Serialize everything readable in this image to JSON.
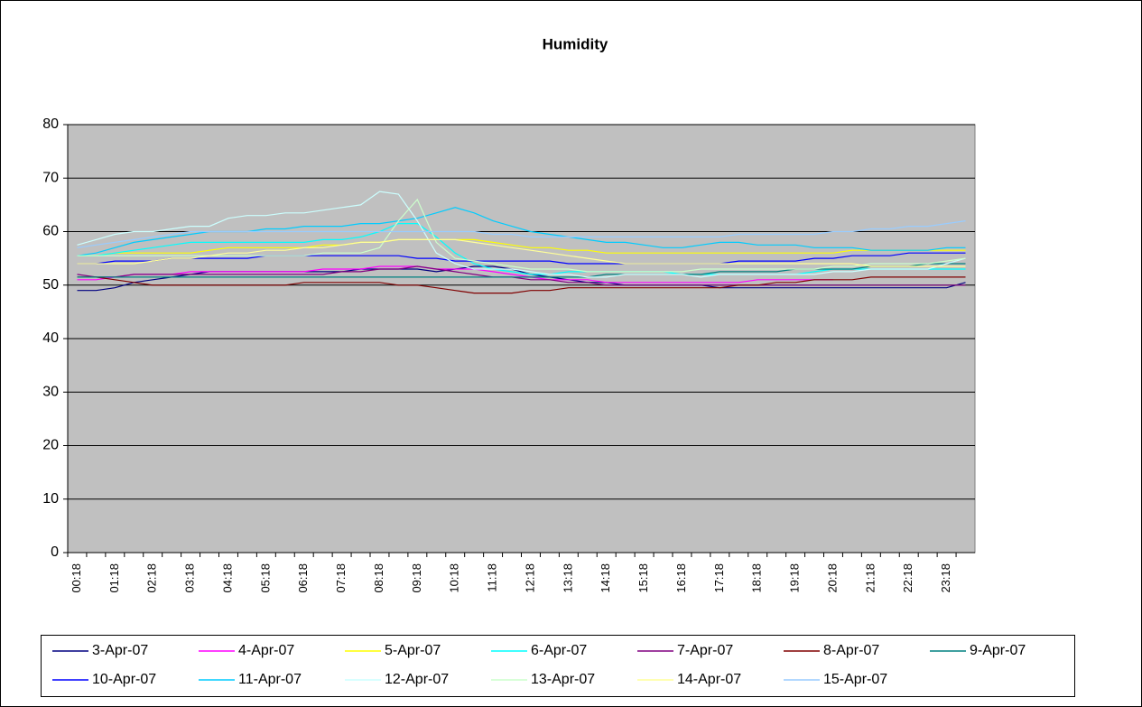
{
  "chart_data": {
    "type": "line",
    "title": "Humidity",
    "categories": [
      "00:18",
      null,
      "01:18",
      null,
      "02:18",
      null,
      "03:18",
      null,
      "04:18",
      null,
      "05:18",
      null,
      "06:18",
      null,
      "07:18",
      null,
      "08:18",
      null,
      "09:18",
      null,
      "10:18",
      null,
      "11:18",
      null,
      "12:18",
      null,
      "13:18",
      null,
      "14:18",
      null,
      "15:18",
      null,
      "16:18",
      null,
      "17:18",
      null,
      "18:18",
      null,
      "19:18",
      null,
      "20:18",
      null,
      "21:18",
      null,
      "22:18",
      null,
      "23:18",
      null
    ],
    "ylim": [
      0,
      80
    ],
    "yticks": [
      0,
      10,
      20,
      30,
      40,
      50,
      60,
      70,
      80
    ],
    "grid": true,
    "legend": "bottom",
    "series": [
      {
        "name": "3-Apr-07",
        "color": "#000080",
        "values": [
          49,
          49,
          49.5,
          50.5,
          51,
          51.5,
          52,
          52.5,
          52.5,
          52.5,
          52.5,
          52.5,
          52.5,
          52.5,
          52.5,
          53,
          53,
          53,
          53,
          52.5,
          53,
          53.5,
          53.5,
          53,
          52,
          51.5,
          51,
          50.5,
          50.5,
          50,
          50,
          50,
          50,
          50,
          49.5,
          49.5,
          49.5,
          49.5,
          49.5,
          49.5,
          49.5,
          49.5,
          49.5,
          49.5,
          49.5,
          49.5,
          49.5,
          50.5
        ]
      },
      {
        "name": "4-Apr-07",
        "color": "#FF00FF",
        "values": [
          51,
          51,
          51.5,
          52,
          52,
          52,
          52.5,
          52.5,
          52.5,
          52.5,
          52.5,
          52.5,
          52.5,
          53,
          53,
          53,
          53.5,
          53.5,
          53.5,
          53,
          53,
          53,
          52.5,
          52,
          51.5,
          51,
          51,
          51,
          50.5,
          50.5,
          50.5,
          50.5,
          50.5,
          50.5,
          50.5,
          50.5,
          51,
          51,
          51,
          51,
          51,
          null,
          null,
          null,
          null,
          null,
          null,
          null
        ]
      },
      {
        "name": "5-Apr-07",
        "color": "#FFFF00",
        "values": [
          55.5,
          55.5,
          56,
          56,
          56,
          56,
          56,
          56.5,
          57,
          57,
          57,
          57,
          57,
          57.5,
          57.5,
          58,
          58,
          58.5,
          58.5,
          58.5,
          58.5,
          58.5,
          58,
          57.5,
          57,
          57,
          56.5,
          56.5,
          56,
          56,
          56,
          56,
          56,
          56,
          56,
          56,
          56,
          56,
          56,
          56,
          56,
          56.5,
          56.5,
          56.5,
          56.5,
          56.5,
          56.5,
          56.5
        ]
      },
      {
        "name": "6-Apr-07",
        "color": "#00FFFF",
        "values": [
          55.5,
          55.5,
          56,
          56.5,
          57,
          57.5,
          58,
          58,
          58,
          58,
          58,
          58,
          58,
          58.5,
          58.5,
          59,
          60,
          61.5,
          61.5,
          59,
          56,
          54,
          53,
          52.5,
          52,
          52,
          52.5,
          52.5,
          52.5,
          52.5,
          52.5,
          52.5,
          52,
          52,
          52,
          52,
          52,
          52,
          52,
          52.5,
          53,
          53,
          53,
          53,
          53,
          53,
          53,
          53
        ]
      },
      {
        "name": "7-Apr-07",
        "color": "#800080",
        "values": [
          52,
          51.5,
          51.5,
          52,
          52,
          52,
          52,
          52,
          52,
          52,
          52,
          52,
          52,
          52,
          52.5,
          52.5,
          53,
          53,
          53.5,
          53,
          52.5,
          52,
          51.5,
          51.5,
          51,
          51,
          50.5,
          50.5,
          50,
          50,
          50,
          50,
          50,
          50,
          50,
          50,
          50,
          50,
          50,
          50,
          50,
          50,
          50,
          50,
          50,
          50,
          50,
          50
        ]
      },
      {
        "name": "8-Apr-07",
        "color": "#800000",
        "values": [
          51.5,
          51.5,
          51,
          50.5,
          50,
          50,
          50,
          50,
          50,
          50,
          50,
          50,
          50.5,
          50.5,
          50.5,
          50.5,
          50.5,
          50,
          50,
          49.5,
          49,
          48.5,
          48.5,
          48.5,
          49,
          49,
          49.5,
          49.5,
          49.5,
          49.5,
          49.5,
          49.5,
          49.5,
          49.5,
          49.5,
          50,
          50,
          50.5,
          50.5,
          51,
          51,
          51,
          51.5,
          51.5,
          51.5,
          51.5,
          51.5,
          51.5
        ]
      },
      {
        "name": "9-Apr-07",
        "color": "#008080",
        "values": [
          51.5,
          51.5,
          51.5,
          51.5,
          51.5,
          51.5,
          51.5,
          51.5,
          51.5,
          51.5,
          51.5,
          51.5,
          51.5,
          51.5,
          51.5,
          51.5,
          51.5,
          51.5,
          51.5,
          51.5,
          51.5,
          51.5,
          51.5,
          51.5,
          51.5,
          51.5,
          51.5,
          51.5,
          52,
          52,
          52,
          52,
          52,
          52,
          52.5,
          52.5,
          52.5,
          52.5,
          53,
          53,
          53,
          53,
          53.5,
          53.5,
          53.5,
          54,
          54,
          54
        ]
      },
      {
        "name": "10-Apr-07",
        "color": "#0000FF",
        "values": [
          54,
          54,
          54.5,
          54.5,
          54.5,
          55,
          55,
          55,
          55,
          55,
          55.5,
          55.5,
          55.5,
          55.5,
          55.5,
          55.5,
          55.5,
          55.5,
          55,
          55,
          54.5,
          54.5,
          54.5,
          54.5,
          54.5,
          54.5,
          54,
          54,
          54,
          54,
          54,
          54,
          54,
          54,
          54,
          54.5,
          54.5,
          54.5,
          54.5,
          55,
          55,
          55.5,
          55.5,
          55.5,
          56,
          56,
          56,
          56
        ]
      },
      {
        "name": "11-Apr-07",
        "color": "#00CCFF",
        "values": [
          55.5,
          56,
          57,
          58,
          58.5,
          59,
          59.5,
          60,
          60,
          60,
          60.5,
          60.5,
          61,
          61,
          61,
          61.5,
          61.5,
          62,
          62.5,
          63.5,
          64.5,
          63.5,
          62,
          61,
          60,
          59.5,
          59,
          58.5,
          58,
          58,
          57.5,
          57,
          57,
          57.5,
          58,
          58,
          57.5,
          57.5,
          57.5,
          57,
          57,
          57,
          56.5,
          56.5,
          56.5,
          56.5,
          57,
          57
        ]
      },
      {
        "name": "12-Apr-07",
        "color": "#CCFFFF",
        "values": [
          57.5,
          58.5,
          59.5,
          60,
          60,
          60.5,
          61,
          61,
          62.5,
          63,
          63,
          63.5,
          63.5,
          64,
          64.5,
          65,
          67.5,
          67,
          62,
          56,
          54,
          53,
          53,
          53,
          52.5,
          52,
          52,
          51.5,
          51.5,
          52,
          52,
          52,
          52,
          51.5,
          52,
          52,
          52,
          52,
          52,
          52,
          52.5,
          52.5,
          53,
          53,
          53,
          53,
          54,
          55
        ]
      },
      {
        "name": "13-Apr-07",
        "color": "#CCFFCC",
        "values": [
          55.5,
          55.5,
          55.5,
          55.5,
          55.5,
          55.5,
          55.5,
          55.5,
          55.5,
          55.5,
          55.5,
          55.5,
          55.5,
          56,
          56,
          56,
          57,
          62,
          66,
          58,
          55,
          54.5,
          54,
          53.5,
          53,
          53,
          53,
          52.5,
          52.5,
          52.5,
          52.5,
          52.5,
          52.5,
          53,
          53,
          53,
          53,
          53,
          53,
          53,
          53.5,
          53.5,
          54,
          54,
          54,
          54,
          54.5,
          55
        ]
      },
      {
        "name": "14-Apr-07",
        "color": "#FFFF99",
        "values": [
          54,
          54,
          54,
          54,
          54.5,
          55,
          55,
          55.5,
          56,
          56,
          56.5,
          56.5,
          57,
          57,
          57.5,
          58,
          58,
          58.5,
          58.5,
          58.5,
          58.5,
          58,
          57.5,
          57,
          56.5,
          56,
          55.5,
          55,
          54.5,
          54,
          54,
          54,
          54,
          54,
          54,
          54,
          54,
          54,
          54,
          54,
          54,
          54,
          53.5,
          53.5,
          53.5,
          53.5,
          53.5,
          53.5
        ]
      },
      {
        "name": "15-Apr-07",
        "color": "#99CCFF",
        "values": [
          57,
          57.5,
          58,
          58.5,
          59,
          59.5,
          60,
          60,
          60,
          60,
          60,
          60,
          60,
          60,
          60,
          60,
          60,
          60,
          60,
          60,
          60,
          60,
          59.5,
          59.5,
          59,
          59,
          59,
          59,
          59,
          59,
          59,
          59,
          59,
          59,
          59,
          59.5,
          59.5,
          59.5,
          59.5,
          59.5,
          60,
          60,
          60.5,
          60.5,
          61,
          61,
          61.5,
          62
        ]
      }
    ]
  }
}
